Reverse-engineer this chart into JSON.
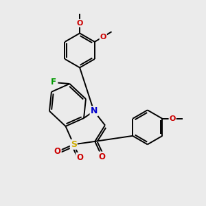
{
  "bg_color": "#ebebeb",
  "bond_color": "#000000",
  "bond_width": 1.4,
  "atom_colors": {
    "N": "#0000cc",
    "O": "#cc0000",
    "S": "#ccaa00",
    "F": "#009900"
  },
  "font_size": 8.0
}
